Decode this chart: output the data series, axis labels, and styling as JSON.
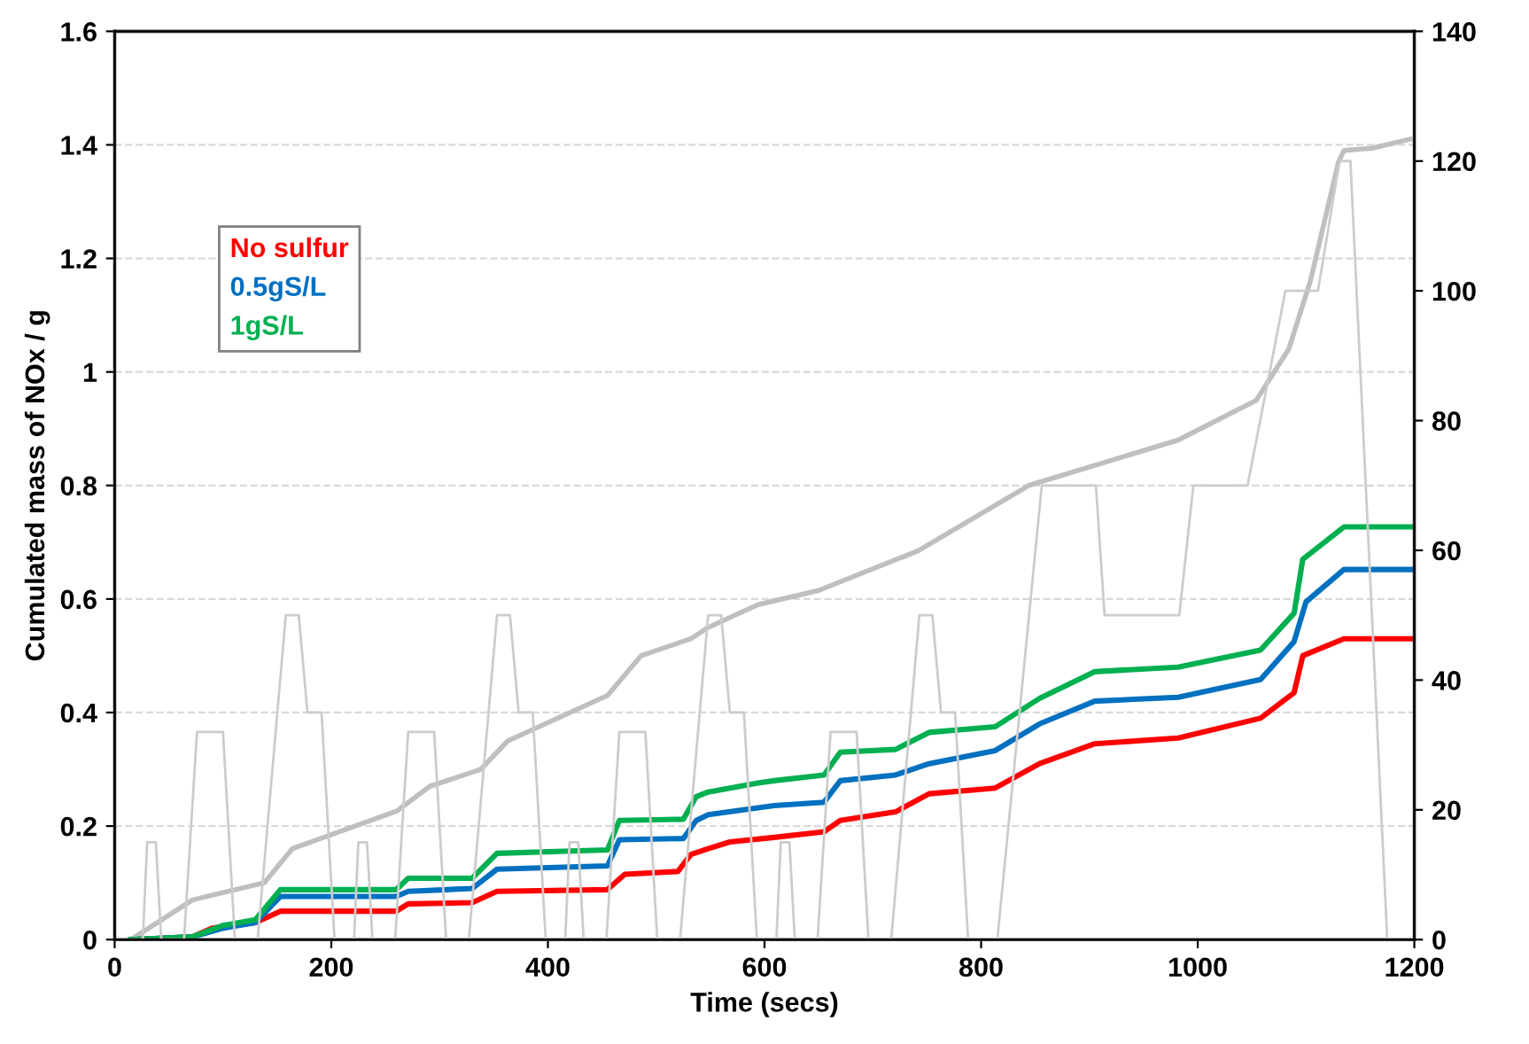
{
  "chart_data": {
    "type": "line",
    "xlabel": "Time (secs)",
    "ylabel": "Cumulated mass of NOx / g",
    "xlim": [
      0,
      1200
    ],
    "xticks": [
      0,
      200,
      400,
      600,
      800,
      1000,
      1200
    ],
    "ylim": [
      0,
      1.6
    ],
    "yticks": [
      0,
      0.2,
      0.4,
      0.6,
      0.8,
      {
        "value": 1.0,
        "label": "1"
      },
      1.2,
      1.4,
      1.6
    ],
    "y2lim": [
      0,
      140
    ],
    "y2ticks": [
      0,
      20,
      40,
      60,
      80,
      100,
      120,
      140
    ],
    "grid": "y",
    "legend": "top left",
    "marker": "none",
    "line_style": "solid",
    "series": [
      {
        "color": "#bfbfbf",
        "x": [
          15,
          72,
          138,
          164,
          261,
          291,
          338,
          363,
          455,
          486,
          532,
          548,
          594,
          650,
          742,
          844,
          982,
          1054,
          1084,
          1104,
          1130,
          1135,
          1161,
          1196
        ],
        "values": [
          0,
          0.07,
          0.1,
          0.16,
          0.227,
          0.27,
          0.3,
          0.35,
          0.43,
          0.5,
          0.53,
          0.55,
          0.59,
          0.615,
          0.685,
          0.8,
          0.88,
          0.95,
          1.04,
          1.16,
          1.37,
          1.39,
          1.394,
          1.41
        ]
      },
      {
        "color": "#cccccc",
        "axis": "y2",
        "x": [
          0,
          26,
          30,
          38,
          43,
          64,
          76,
          100,
          111,
          132,
          158,
          170,
          178,
          191,
          203,
          221,
          225,
          233,
          238,
          259,
          271,
          295,
          306,
          327,
          353,
          365,
          373,
          386,
          398,
          416,
          420,
          428,
          433,
          454,
          466,
          490,
          501,
          522,
          548,
          560,
          568,
          581,
          593,
          611,
          615,
          623,
          628,
          649,
          661,
          685,
          696,
          717,
          743,
          755,
          763,
          776,
          788,
          795,
          815,
          856,
          906,
          914,
          983,
          996,
          1046,
          1081,
          1111,
          1131,
          1141,
          1175,
          1200
        ],
        "values": [
          0,
          0,
          15,
          15,
          0,
          0,
          32,
          32,
          0,
          0,
          50,
          50,
          35,
          35,
          0,
          0,
          15,
          15,
          0,
          0,
          32,
          32,
          0,
          0,
          50,
          50,
          35,
          35,
          0,
          0,
          15,
          15,
          0,
          0,
          32,
          32,
          0,
          0,
          50,
          50,
          35,
          35,
          0,
          0,
          15,
          15,
          0,
          0,
          32,
          32,
          0,
          0,
          50,
          50,
          35,
          35,
          0,
          0,
          0,
          70,
          70,
          50,
          50,
          70,
          70,
          100,
          100,
          120,
          120,
          0,
          0
        ]
      },
      {
        "name": "No sulfur",
        "color": "#ff0000",
        "x": [
          15,
          72,
          90,
          130,
          153,
          260,
          271,
          330,
          353,
          455,
          471,
          520,
          532,
          548,
          568,
          609,
          655,
          670,
          721,
          752,
          813,
          854,
          905,
          982,
          1058,
          1089,
          1097,
          1135,
          1200
        ],
        "values": [
          0,
          0.005,
          0.02,
          0.03,
          0.05,
          0.05,
          0.063,
          0.065,
          0.085,
          0.088,
          0.115,
          0.12,
          0.15,
          0.16,
          0.172,
          0.18,
          0.19,
          0.21,
          0.225,
          0.257,
          0.267,
          0.31,
          0.345,
          0.355,
          0.39,
          0.435,
          0.5,
          0.53,
          0.53
        ]
      },
      {
        "name": "0.5gS/L",
        "color": "#0070c0",
        "x": [
          15,
          72,
          100,
          130,
          153,
          260,
          271,
          330,
          353,
          455,
          466,
          525,
          537,
          548,
          594,
          609,
          655,
          670,
          721,
          752,
          813,
          854,
          905,
          982,
          1058,
          1089,
          1100,
          1135,
          1200
        ],
        "values": [
          0,
          0.005,
          0.02,
          0.03,
          0.076,
          0.076,
          0.085,
          0.09,
          0.124,
          0.13,
          0.176,
          0.178,
          0.21,
          0.22,
          0.232,
          0.236,
          0.242,
          0.28,
          0.29,
          0.31,
          0.333,
          0.38,
          0.42,
          0.427,
          0.458,
          0.525,
          0.595,
          0.652,
          0.652
        ]
      },
      {
        "name": "1gS/L",
        "color": "#00b050",
        "x": [
          15,
          72,
          100,
          130,
          153,
          260,
          271,
          330,
          353,
          455,
          466,
          525,
          537,
          548,
          594,
          609,
          655,
          670,
          721,
          752,
          813,
          854,
          905,
          982,
          1058,
          1089,
          1097,
          1135,
          1200
        ],
        "values": [
          0,
          0.005,
          0.025,
          0.035,
          0.088,
          0.088,
          0.108,
          0.108,
          0.152,
          0.158,
          0.21,
          0.212,
          0.252,
          0.26,
          0.276,
          0.28,
          0.29,
          0.33,
          0.335,
          0.365,
          0.375,
          0.425,
          0.472,
          0.48,
          0.51,
          0.575,
          0.67,
          0.727,
          0.727
        ]
      }
    ]
  }
}
